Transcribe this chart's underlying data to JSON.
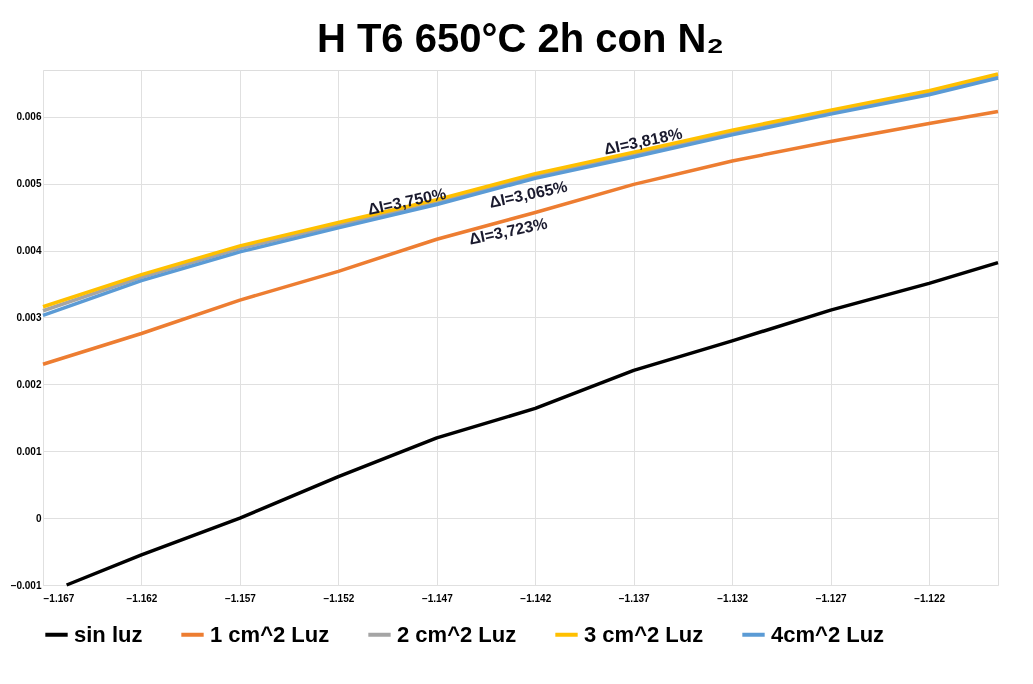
{
  "chart_data": {
    "type": "line",
    "title": "H T6 650°C 2h con N₂",
    "x": [
      -1.167,
      -1.162,
      -1.157,
      -1.152,
      -1.147,
      -1.142,
      -1.137,
      -1.132,
      -1.127,
      -1.122,
      -1.1185
    ],
    "xlim": [
      -1.167,
      -1.1185
    ],
    "xticks": [
      -1.167,
      -1.162,
      -1.157,
      -1.152,
      -1.147,
      -1.142,
      -1.137,
      -1.132,
      -1.127,
      -1.122
    ],
    "ylim": [
      -0.001,
      0.0067
    ],
    "yticks": [
      -0.001,
      0,
      0.001,
      0.002,
      0.003,
      0.004,
      0.005,
      0.006
    ],
    "grid": true,
    "legend": "bottom",
    "marker": "none",
    "line_style": "solid",
    "series": [
      {
        "name": "sin luz",
        "color": "#000000",
        "x": [
          -1.1658,
          -1.162,
          -1.157,
          -1.152,
          -1.147,
          -1.142,
          -1.137,
          -1.132,
          -1.127,
          -1.122,
          -1.1185
        ],
        "values": [
          -0.001,
          -0.00055,
          0.0,
          0.00062,
          0.0012,
          0.00164,
          0.00221,
          0.00265,
          0.00311,
          0.00351,
          0.00382
        ]
      },
      {
        "name": "1 cm^2 Luz",
        "color": "#ed7d31",
        "values": [
          0.0023,
          0.00276,
          0.00326,
          0.00369,
          0.00417,
          0.00457,
          0.00499,
          0.00534,
          0.00563,
          0.0059,
          0.00608
        ]
      },
      {
        "name": "2 cm^2 Luz",
        "color": "#a5a5a5",
        "values": [
          0.0031,
          0.0036,
          0.00403,
          0.00438,
          0.00473,
          0.00512,
          0.00544,
          0.00577,
          0.00607,
          0.00636,
          0.00661
        ]
      },
      {
        "name": "3 cm^2 Luz",
        "color": "#ffc000",
        "values": [
          0.00316,
          0.00364,
          0.00407,
          0.00442,
          0.00476,
          0.00515,
          0.00547,
          0.0058,
          0.0061,
          0.00639,
          0.00664
        ]
      },
      {
        "name": "4cm^2 Luz",
        "color": "#5b9bd5",
        "values": [
          0.00303,
          0.00355,
          0.00398,
          0.00434,
          0.00469,
          0.00508,
          0.0054,
          0.00573,
          0.00604,
          0.00633,
          0.00658
        ]
      }
    ],
    "annotations": [
      {
        "text": "ΔI=3,750%",
        "x": -1.1485,
        "y": 0.0047
      },
      {
        "text": "ΔI=3,065%",
        "x": -1.1425,
        "y": 0.00504
      },
      {
        "text": "ΔI=3,723%",
        "x": -1.1435,
        "y": 0.00446
      },
      {
        "text": "ΔI=3,818%",
        "x": -1.1365,
        "y": 0.0056
      }
    ]
  }
}
